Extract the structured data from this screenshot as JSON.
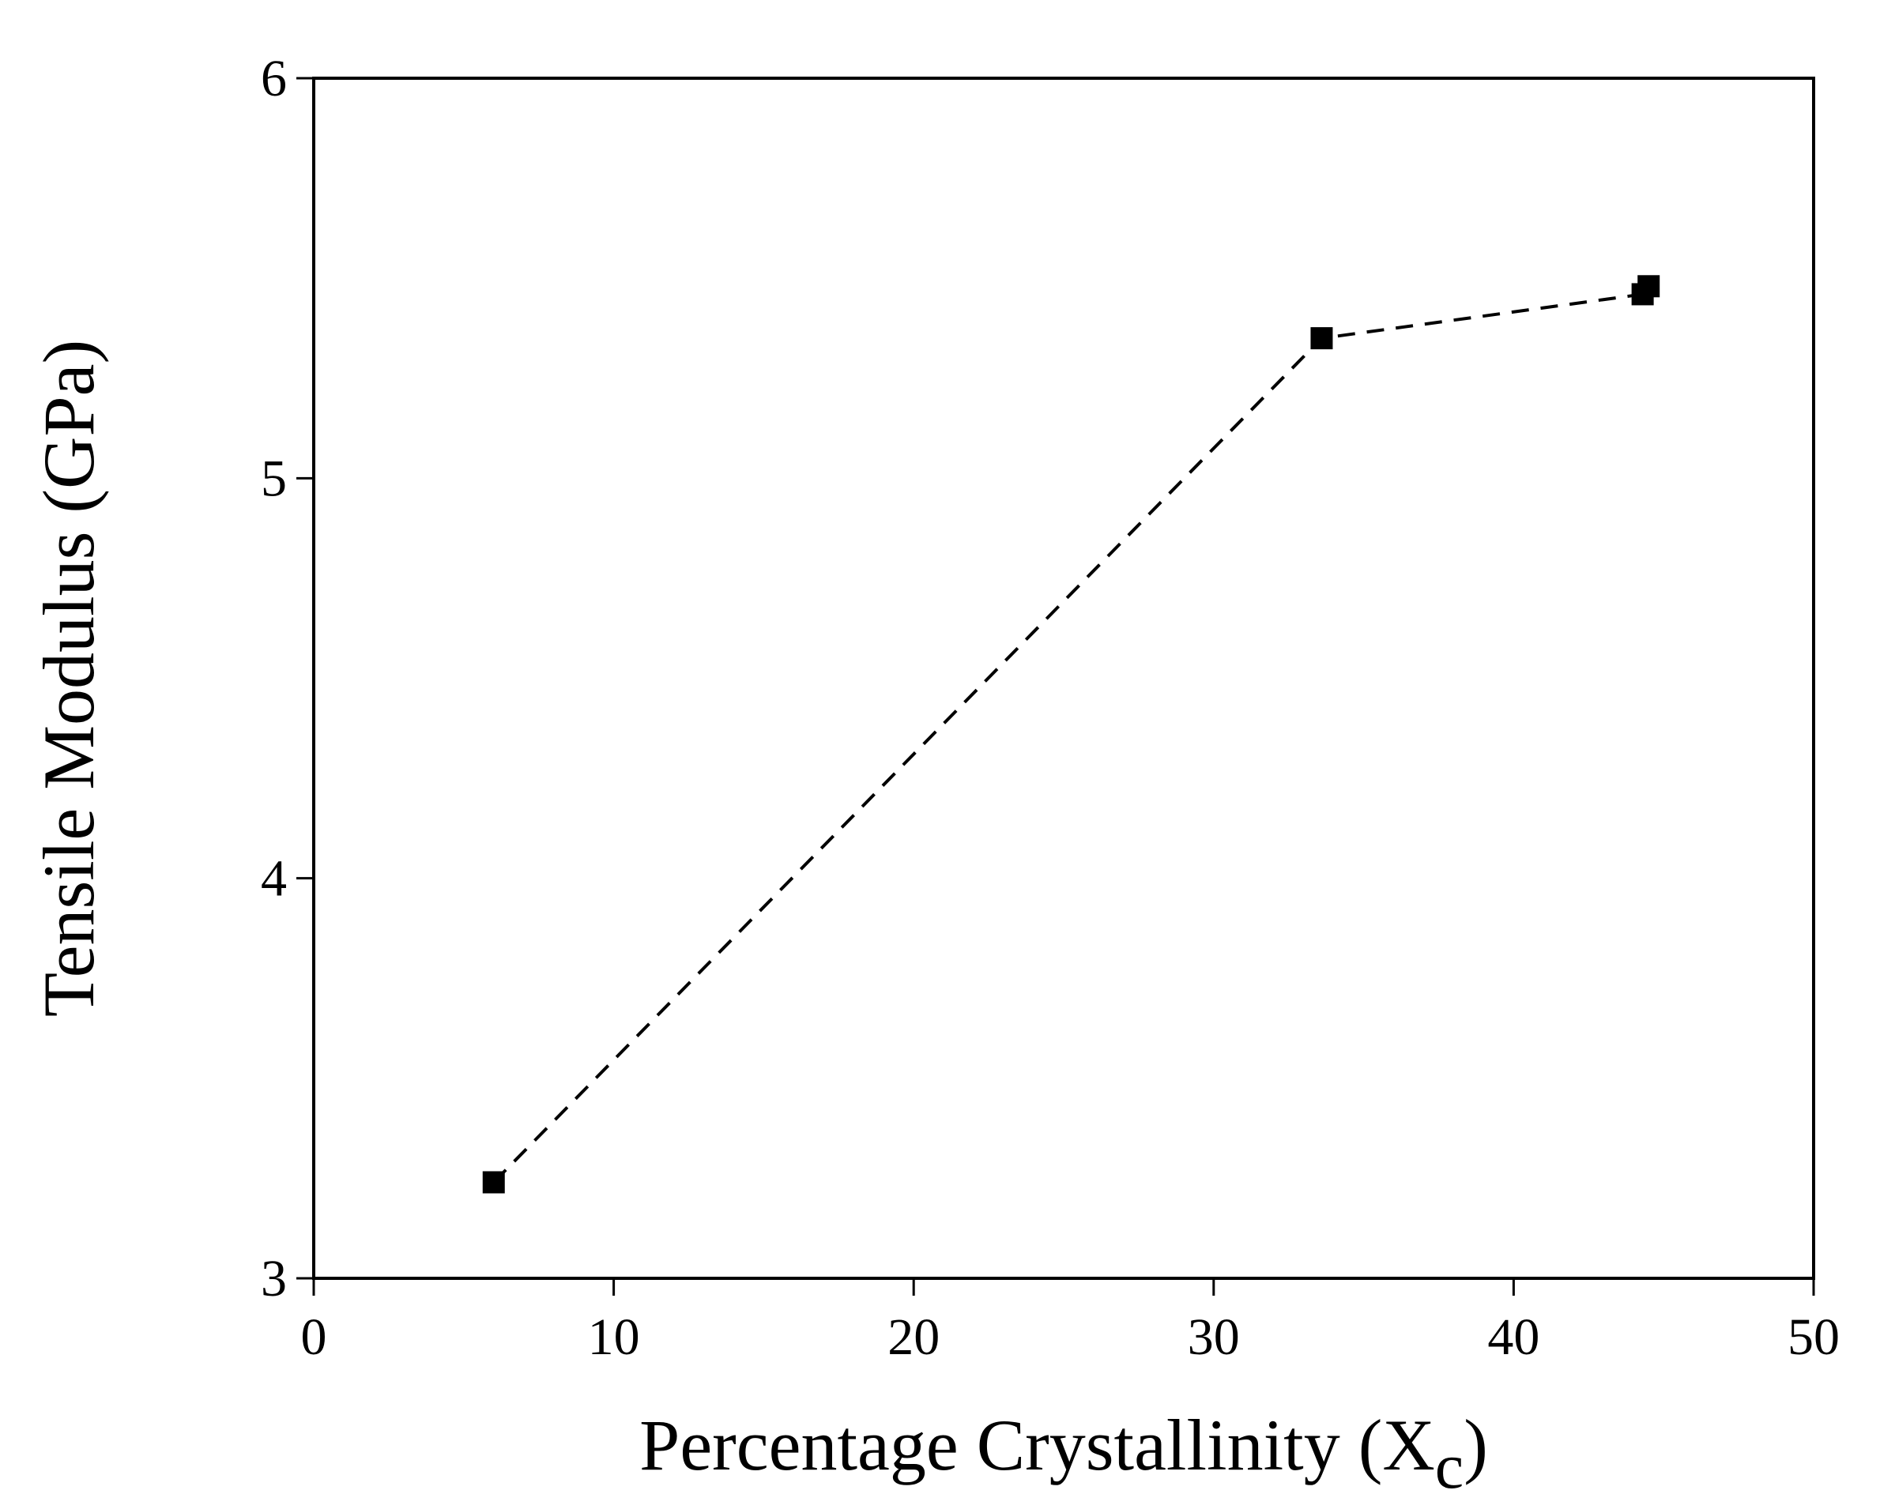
{
  "chart_data": {
    "type": "line",
    "title": "",
    "xlabel": "Percentage Crystallinity (X",
    "xlabel_subscript": "c",
    "xlabel_suffix": ")",
    "ylabel": "Tensile Modulus (GPa)",
    "xlim": [
      0,
      50
    ],
    "ylim": [
      3,
      6
    ],
    "xticks": [
      0,
      10,
      20,
      30,
      40,
      50
    ],
    "yticks": [
      3,
      4,
      5,
      6
    ],
    "xtick_labels": [
      "0",
      "10",
      "20",
      "30",
      "40",
      "50"
    ],
    "ytick_labels": [
      "3",
      "4",
      "5",
      "6"
    ],
    "grid": false,
    "series": [
      {
        "name": "Tensile Modulus",
        "marker": "square",
        "line_style": "dashed",
        "color": "#000000",
        "x": [
          6.0,
          33.6,
          44.3,
          44.5
        ],
        "y": [
          3.24,
          5.35,
          5.46,
          5.48
        ]
      }
    ]
  }
}
